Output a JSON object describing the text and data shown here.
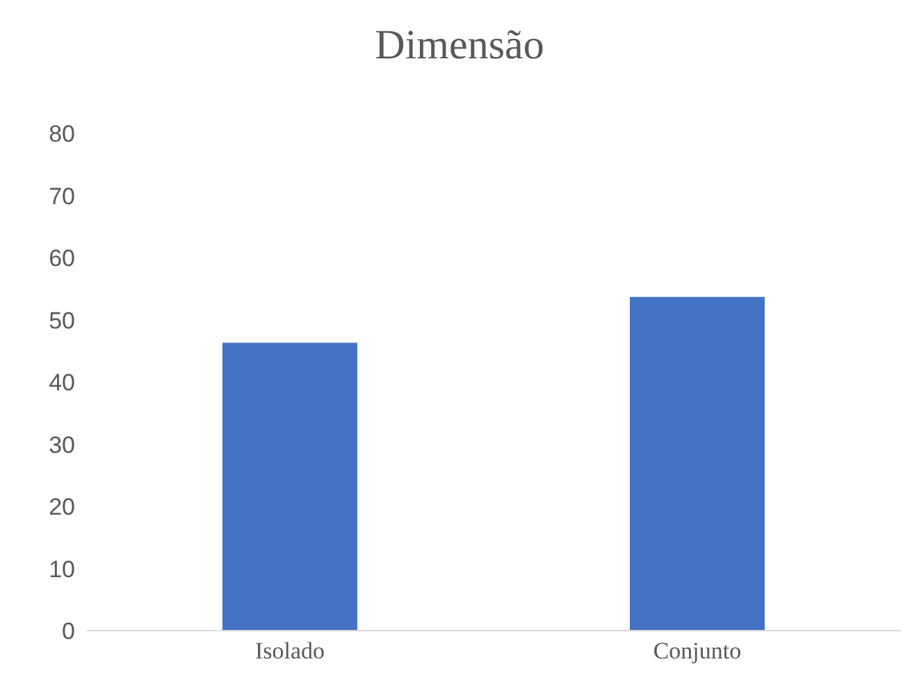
{
  "chart_data": {
    "type": "bar",
    "title": "Dimensão",
    "categories": [
      "Isolado",
      "Conjunto"
    ],
    "values": [
      46.3,
      53.7
    ],
    "color": "#4472c4",
    "ylim": [
      0,
      80
    ],
    "yticks": [
      0,
      10,
      20,
      30,
      40,
      50,
      60,
      70,
      80
    ],
    "grid": false
  }
}
